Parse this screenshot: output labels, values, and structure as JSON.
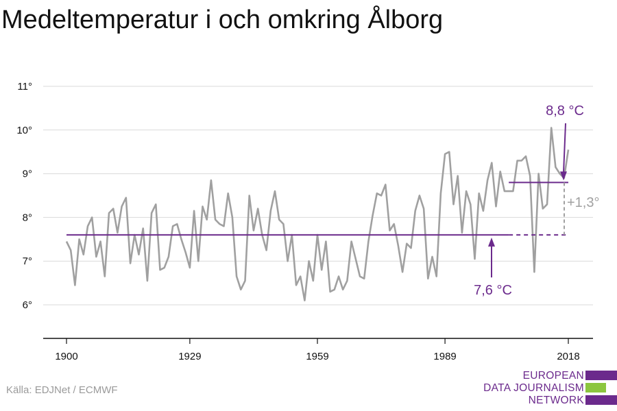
{
  "title": "Medeltemperatur i och omkring Ålborg",
  "source": "Källa: EDJNet / ECMWF",
  "logo": {
    "lines": [
      "EUROPEAN",
      "DATA JOURNALISM",
      "NETWORK"
    ]
  },
  "colors": {
    "series": "#a0a0a0",
    "accent": "#6b2a8c",
    "logo_green": "#8cc63f",
    "grid": "#d9d9d9",
    "axis": "#111111",
    "diff_label": "#a0a0a0"
  },
  "chart_data": {
    "type": "line",
    "title": "Medeltemperatur i och omkring Ålborg",
    "xlabel": "",
    "ylabel": "",
    "xlim": [
      1900,
      2018
    ],
    "ylim": [
      5.5,
      11
    ],
    "x_ticks": [
      1900,
      1929,
      1959,
      1989,
      2018
    ],
    "x_tick_labels": [
      "1900",
      "1929",
      "1959",
      "1989",
      "2018"
    ],
    "y_ticks": [
      6,
      7,
      8,
      9,
      10,
      11
    ],
    "y_tick_labels": [
      "6°",
      "7°",
      "8°",
      "9°",
      "10°",
      "11°"
    ],
    "grid": true,
    "series": [
      {
        "x": [
          1900,
          1901,
          1902,
          1903,
          1904,
          1905,
          1906,
          1907,
          1908,
          1909,
          1910,
          1911,
          1912,
          1913,
          1914,
          1915,
          1916,
          1917,
          1918,
          1919,
          1920,
          1921,
          1922,
          1923,
          1924,
          1925,
          1926,
          1927,
          1928,
          1929,
          1930,
          1931,
          1932,
          1933,
          1934,
          1935,
          1936,
          1937,
          1938,
          1939,
          1940,
          1941,
          1942,
          1943,
          1944,
          1945,
          1946,
          1947,
          1948,
          1949,
          1950,
          1951,
          1952,
          1953,
          1954,
          1955,
          1956,
          1957,
          1958,
          1959,
          1960,
          1961,
          1962,
          1963,
          1964,
          1965,
          1966,
          1967,
          1968,
          1969,
          1970,
          1971,
          1972,
          1973,
          1974,
          1975,
          1976,
          1977,
          1978,
          1979,
          1980,
          1981,
          1982,
          1983,
          1984,
          1985,
          1986,
          1987,
          1988,
          1989,
          1990,
          1991,
          1992,
          1993,
          1994,
          1995,
          1996,
          1997,
          1998,
          1999,
          2000,
          2001,
          2002,
          2003,
          2004,
          2005,
          2006,
          2007,
          2008,
          2009,
          2010,
          2011,
          2012,
          2013,
          2014,
          2015,
          2016,
          2017,
          2018
        ],
        "values": [
          7.45,
          7.25,
          6.45,
          7.5,
          7.15,
          7.8,
          8.0,
          7.1,
          7.45,
          6.65,
          8.1,
          8.2,
          7.65,
          8.25,
          8.45,
          6.95,
          7.6,
          7.15,
          7.75,
          6.55,
          8.1,
          8.3,
          6.8,
          6.85,
          7.1,
          7.8,
          7.85,
          7.5,
          7.2,
          6.85,
          8.15,
          7.0,
          8.25,
          7.95,
          8.85,
          7.95,
          7.85,
          7.8,
          8.55,
          8.0,
          6.65,
          6.35,
          6.55,
          8.5,
          7.7,
          8.2,
          7.6,
          7.25,
          8.15,
          8.6,
          7.95,
          7.85,
          7.0,
          7.6,
          6.45,
          6.65,
          6.1,
          7.0,
          6.55,
          7.6,
          6.8,
          7.45,
          6.3,
          6.35,
          6.65,
          6.35,
          6.55,
          7.45,
          7.05,
          6.65,
          6.6,
          7.45,
          8.05,
          8.55,
          8.5,
          8.75,
          7.7,
          7.85,
          7.35,
          6.75,
          7.4,
          7.3,
          8.15,
          8.5,
          8.2,
          6.6,
          7.1,
          6.65,
          8.55,
          9.45,
          9.5,
          8.3,
          8.95,
          7.65,
          8.6,
          8.3,
          7.05,
          8.55,
          8.15,
          8.85,
          9.25,
          8.25,
          9.05,
          8.6,
          8.6,
          8.6,
          9.3,
          9.3,
          9.4,
          8.95,
          6.75,
          9.0,
          8.2,
          8.3,
          10.05,
          9.15,
          9.0,
          8.9,
          9.55
        ]
      }
    ],
    "annotations": {
      "baseline": {
        "value": 7.6,
        "from": 1900,
        "to": 2004,
        "dashed_to": 2018,
        "label": "7,6 °C"
      },
      "recent": {
        "value": 8.8,
        "from": 2004,
        "to": 2018,
        "label": "8,8 °C"
      },
      "difference": {
        "label": "+1,3°"
      }
    }
  }
}
